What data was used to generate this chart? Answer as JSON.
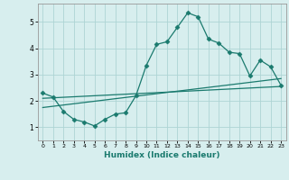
{
  "xlabel": "Humidex (Indice chaleur)",
  "xlim": [
    -0.5,
    23.5
  ],
  "ylim": [
    0.5,
    5.7
  ],
  "yticks": [
    1,
    2,
    3,
    4,
    5
  ],
  "xticks": [
    0,
    1,
    2,
    3,
    4,
    5,
    6,
    7,
    8,
    9,
    10,
    11,
    12,
    13,
    14,
    15,
    16,
    17,
    18,
    19,
    20,
    21,
    22,
    23
  ],
  "bg_color": "#d7eeee",
  "grid_color": "#aed4d4",
  "line_color": "#1a7a6e",
  "line1_x": [
    0,
    1,
    2,
    3,
    4,
    5,
    6,
    7,
    8,
    9,
    10,
    11,
    12,
    13,
    14,
    15,
    16,
    17,
    18,
    19,
    20,
    21,
    22,
    23
  ],
  "line1_y": [
    2.3,
    2.15,
    1.6,
    1.3,
    1.2,
    1.05,
    1.3,
    1.5,
    1.55,
    2.2,
    3.35,
    4.15,
    4.25,
    4.8,
    5.35,
    5.2,
    4.35,
    4.2,
    3.85,
    3.8,
    2.95,
    3.55,
    3.3,
    2.6
  ],
  "line2_x": [
    0,
    23
  ],
  "line2_y": [
    2.1,
    2.55
  ],
  "line3_x": [
    0,
    23
  ],
  "line3_y": [
    1.75,
    2.85
  ]
}
